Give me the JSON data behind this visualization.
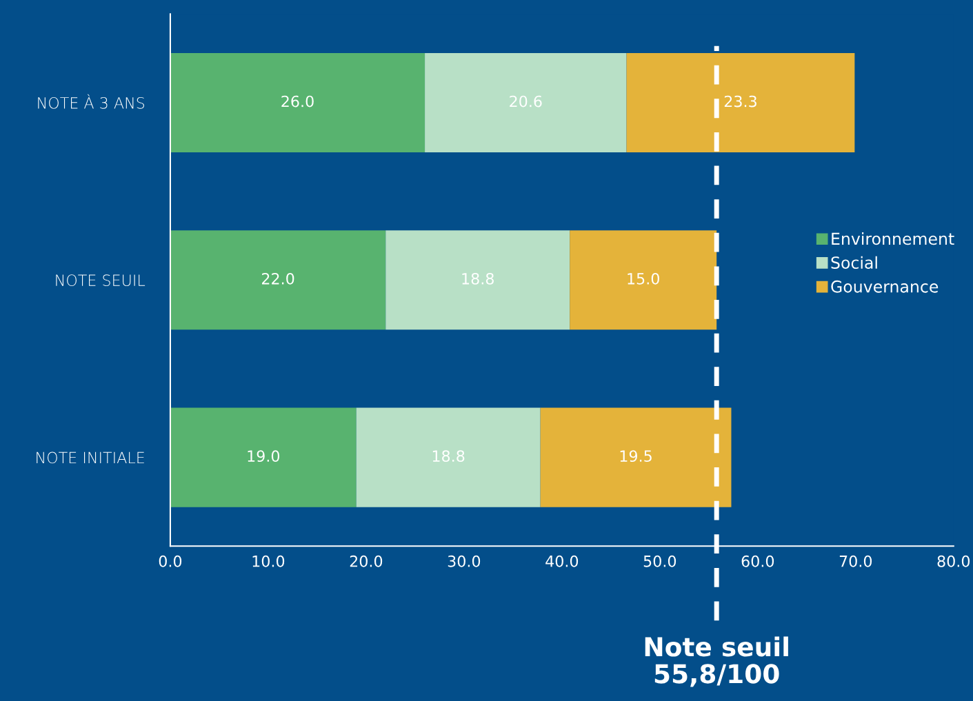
{
  "chart_data": {
    "type": "bar",
    "orientation": "horizontal",
    "stacked": true,
    "categories": [
      "NOTE À 3 ANS",
      "NOTE SEUIL",
      "NOTE INITIALE"
    ],
    "series": [
      {
        "name": "Environnement",
        "color": "#58b36f",
        "values": [
          26.0,
          22.0,
          19.0
        ],
        "value_labels": [
          "26.0",
          "22.0",
          "19.0"
        ]
      },
      {
        "name": "Social",
        "color": "#b8e0c6",
        "values": [
          20.6,
          18.8,
          18.8
        ],
        "value_labels": [
          "20.6",
          "18.8",
          "18.8"
        ]
      },
      {
        "name": "Gouvernance",
        "color": "#e4b33a",
        "values": [
          23.3,
          15.0,
          19.5
        ],
        "value_labels": [
          "23.3",
          "15.0",
          "19.5"
        ]
      }
    ],
    "xlim": [
      0,
      80
    ],
    "xticks": [
      {
        "value": 0,
        "label": "0.0"
      },
      {
        "value": 10,
        "label": "10.0"
      },
      {
        "value": 20,
        "label": "20.0"
      },
      {
        "value": 30,
        "label": "30.0"
      },
      {
        "value": 40,
        "label": "40.0"
      },
      {
        "value": 50,
        "label": "50.0"
      },
      {
        "value": 60,
        "label": "60.0"
      },
      {
        "value": 70,
        "label": "70.0"
      },
      {
        "value": 80,
        "label": "80.0"
      }
    ],
    "ref_lines": [
      {
        "axis": "x",
        "value": 55.8,
        "label": "Note seuil\n55,8/100",
        "color": "#ffffff",
        "line_style": "dashed"
      }
    ],
    "legend": "right",
    "grid": false
  }
}
